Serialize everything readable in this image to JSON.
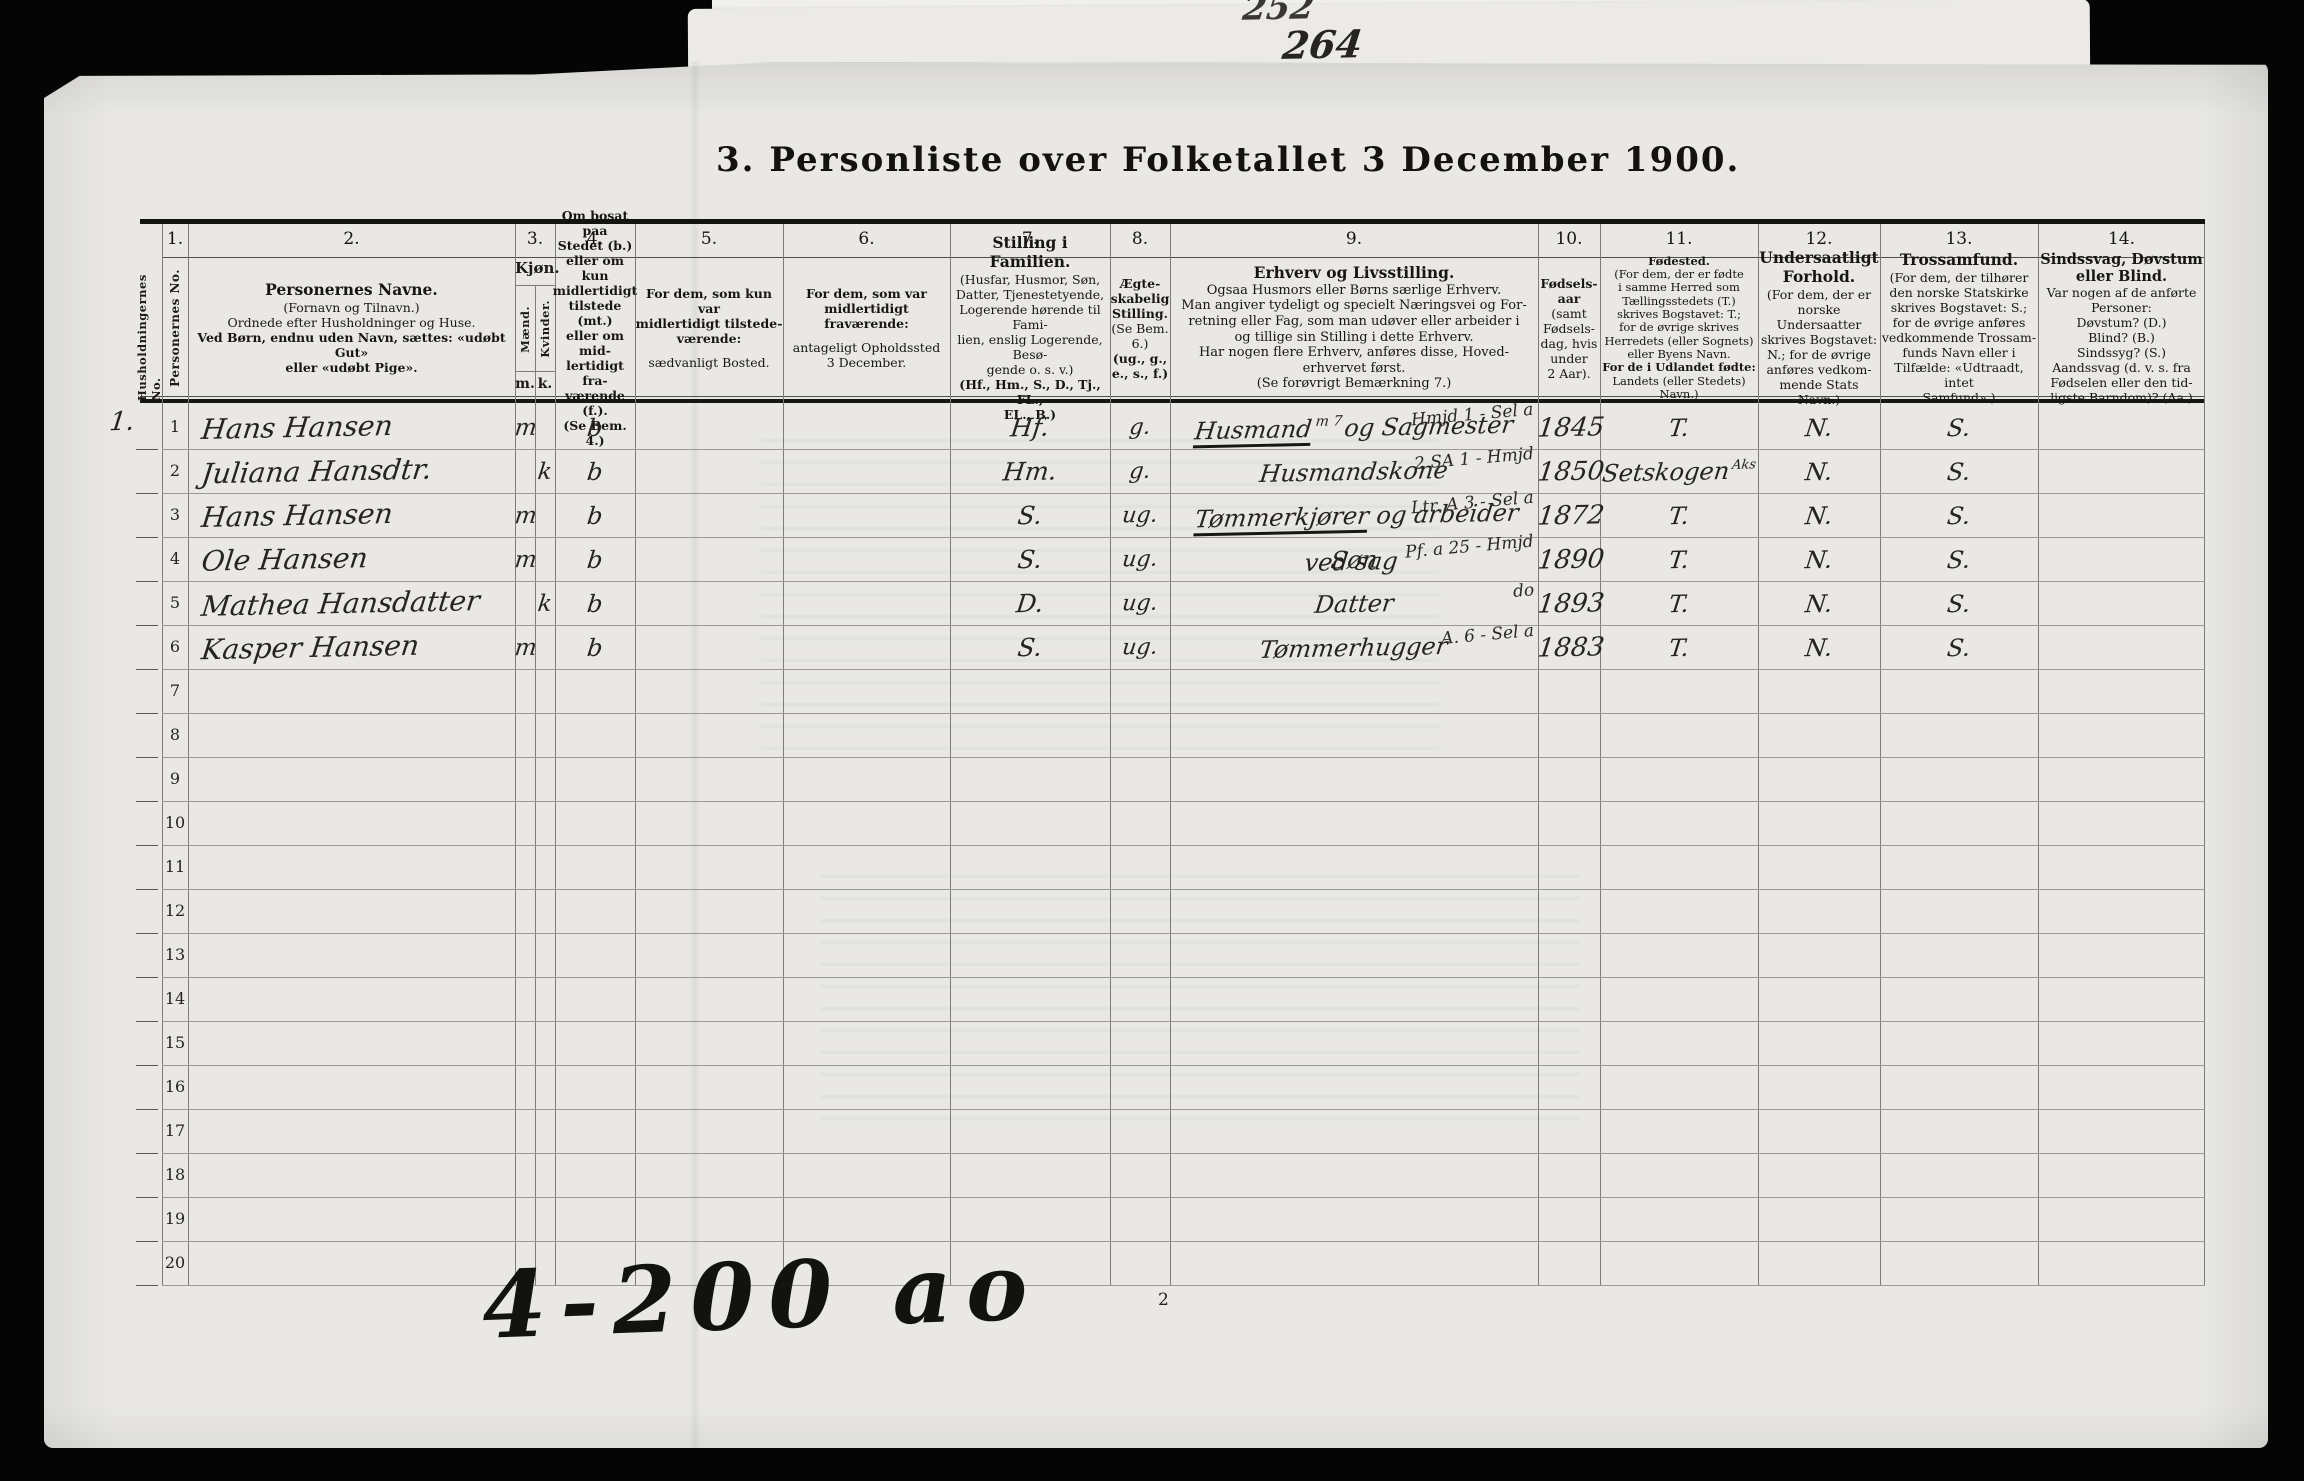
{
  "page": {
    "top_scribble_upper": "252",
    "top_scribble_lower": "264",
    "title": "3. Personliste over Folketallet 3 December 1900.",
    "footer_scribble": "4-200 ao",
    "page_number": "2"
  },
  "table": {
    "margin_label": "Husholdningernes No.",
    "header": {
      "c1": {
        "no": "1.",
        "vlabel": "Personernes No."
      },
      "c2": {
        "no": "2.",
        "segments": [
          [
            "t",
            "Personernes Navne."
          ],
          [
            "s",
            "(Fornavn og Tilnavn.)"
          ],
          [
            "s",
            "Ordnede efter Husholdninger og Huse."
          ],
          [
            "sb",
            "Ved Børn, endnu uden Navn, sættes: «udøbt Gut»"
          ],
          [
            "sb",
            "eller «udøbt Pige»."
          ]
        ]
      },
      "c3": {
        "no": "3.",
        "title": "Kjøn.",
        "sub_left": "Mænd.",
        "sub_right": "Kvinder.",
        "abbr_left": "m.",
        "abbr_right": "k."
      },
      "c4": {
        "no": "4.",
        "segments": [
          [
            "sb",
            "Om bosat paa"
          ],
          [
            "sb",
            "Stedet (b.)"
          ],
          [
            "sb",
            "eller om kun"
          ],
          [
            "sb",
            "midlertidigt"
          ],
          [
            "sb",
            "tilstede (mt.)"
          ],
          [
            "sb",
            "eller om mid-"
          ],
          [
            "sb",
            "lertidigt fra-"
          ],
          [
            "sb",
            "værende (f.)."
          ],
          [
            "sb",
            "(Se Bem. 4.)"
          ]
        ]
      },
      "c5": {
        "no": "5.",
        "segments": [
          [
            "sb",
            "For dem, som kun var"
          ],
          [
            "sb",
            "midlertidigt tilstede-"
          ],
          [
            "sb",
            "værende:"
          ],
          [
            "gap",
            ""
          ],
          [
            "s",
            "sædvanligt Bosted."
          ]
        ]
      },
      "c6": {
        "no": "6.",
        "segments": [
          [
            "sb",
            "For dem, som var"
          ],
          [
            "sb",
            "midlertidigt"
          ],
          [
            "sb",
            "fraværende:"
          ],
          [
            "gap",
            ""
          ],
          [
            "s",
            "antageligt Opholdssted"
          ],
          [
            "s",
            "3 December."
          ]
        ]
      },
      "c7": {
        "no": "7.",
        "segments": [
          [
            "t",
            "Stilling i Familien."
          ],
          [
            "s",
            "(Husfar, Husmor, Søn,"
          ],
          [
            "s",
            "Datter, Tjenestetyende,"
          ],
          [
            "s",
            "Logerende hørende til Fami-"
          ],
          [
            "s",
            "lien, enslig Logerende, Besø-"
          ],
          [
            "s",
            "gende o. s. v.)"
          ],
          [
            "sb",
            "(Hf., Hm., S., D., Tj., FL.,"
          ],
          [
            "sb",
            "EL., B.)"
          ]
        ]
      },
      "c8": {
        "no": "8.",
        "segments": [
          [
            "sb",
            "Ægte-"
          ],
          [
            "sb",
            "skabelig"
          ],
          [
            "sb",
            "Stilling."
          ],
          [
            "s",
            "(Se Bem. 6.)"
          ],
          [
            "sb",
            "(ug., g.,"
          ],
          [
            "sb",
            "e., s., f.)"
          ]
        ]
      },
      "c9": {
        "no": "9.",
        "segments": [
          [
            "t",
            "Erhverv og Livsstilling."
          ],
          [
            "s",
            "Ogsaa Husmors eller Børns særlige Erhverv."
          ],
          [
            "s",
            "Man angiver tydeligt og specielt Næringsvei og For-"
          ],
          [
            "s",
            "retning eller Fag, som man udøver eller arbeider i"
          ],
          [
            "s",
            "og tillige sin Stilling i dette Erhverv."
          ],
          [
            "s",
            "Har nogen flere Erhverv, anføres disse, Hoved-"
          ],
          [
            "s",
            "erhvervet først."
          ],
          [
            "s",
            "(Se forøvrigt Bemærkning 7.)"
          ]
        ]
      },
      "c10": {
        "no": "10.",
        "segments": [
          [
            "sb",
            "Fødsels-"
          ],
          [
            "sb",
            "aar"
          ],
          [
            "s",
            "(samt"
          ],
          [
            "s",
            "Fødsels-"
          ],
          [
            "s",
            "dag, hvis"
          ],
          [
            "s",
            "under"
          ],
          [
            "s",
            "2 Aar)."
          ]
        ]
      },
      "c11": {
        "no": "11.",
        "segments": [
          [
            "t",
            "Fødested."
          ],
          [
            "s",
            "(For dem, der er fødte"
          ],
          [
            "s",
            "i samme Herred som"
          ],
          [
            "s",
            "Tællingsstedets (T.)"
          ],
          [
            "s",
            "skrives Bogstavet: T.;"
          ],
          [
            "s",
            "for de øvrige skrives"
          ],
          [
            "s",
            "Herredets (eller Sognets)"
          ],
          [
            "s",
            "eller Byens Navn."
          ],
          [
            "sb",
            "For de i Udlandet fødte:"
          ],
          [
            "s",
            "Landets (eller Stedets)"
          ],
          [
            "s",
            "Navn.)"
          ]
        ]
      },
      "c12": {
        "no": "12.",
        "segments": [
          [
            "t",
            "Undersaatligt"
          ],
          [
            "t",
            "Forhold."
          ],
          [
            "gap",
            ""
          ],
          [
            "s",
            "(For dem, der er"
          ],
          [
            "s",
            "norske Undersaatter"
          ],
          [
            "s",
            "skrives Bogstavet:"
          ],
          [
            "s",
            "N.; for de øvrige"
          ],
          [
            "s",
            "anføres vedkom-"
          ],
          [
            "s",
            "mende Stats Navn.)"
          ]
        ]
      },
      "c13": {
        "no": "13.",
        "segments": [
          [
            "t",
            "Trossamfund."
          ],
          [
            "s",
            "(For dem, der tilhører"
          ],
          [
            "s",
            "den norske Statskirke"
          ],
          [
            "s",
            "skrives Bogstavet: S.;"
          ],
          [
            "s",
            "for de øvrige anføres"
          ],
          [
            "s",
            "vedkommende Trossam-"
          ],
          [
            "s",
            "funds Navn eller i"
          ],
          [
            "s",
            "Tilfælde: «Udtraadt, intet"
          ],
          [
            "s",
            "Samfund».)"
          ]
        ]
      },
      "c14": {
        "no": "14.",
        "segments": [
          [
            "t",
            "Sindssvag, Døvstum"
          ],
          [
            "t",
            "eller Blind."
          ],
          [
            "s",
            "Var nogen af de anførte"
          ],
          [
            "s",
            "Personer:"
          ],
          [
            "s",
            "Døvstum?  (D.)"
          ],
          [
            "s",
            "Blind?  (B.)"
          ],
          [
            "s",
            "Sindssyg?  (S.)"
          ],
          [
            "s",
            "Aandssvag (d. v. s. fra"
          ],
          [
            "s",
            "Fødselen eller den tid-"
          ],
          [
            "s",
            "ligste Barndom)? (Aa.)"
          ]
        ]
      }
    },
    "rows": [
      {
        "household": "1.",
        "no": "1",
        "name": "Hans Hansen",
        "sex_m": "m",
        "residency": "b",
        "family": "Hf.",
        "marital": "g.",
        "occupation": {
          "underlined": "Husmand",
          "rest": "og Sagmester",
          "mark": "m 7",
          "note": "Hmjd 1 - Sel a"
        },
        "birth_year": "1845",
        "birthplace": "T.",
        "citizenship": "N.",
        "religion": "S."
      },
      {
        "no": "2",
        "name": "Juliana Hansdtr.",
        "sex_k": "k",
        "residency": "b",
        "family": "Hm.",
        "marital": "g.",
        "occupation": {
          "main": "Husmandskone",
          "note": "2 SA 1 - Hmjd"
        },
        "birth_year": "1850",
        "birthplace": "Setskogen",
        "birthplace_sup": "Aks",
        "citizenship": "N.",
        "religion": "S."
      },
      {
        "no": "3",
        "name": "Hans Hansen",
        "sex_m": "m",
        "residency": "b",
        "family": "S.",
        "marital": "ug.",
        "occupation": {
          "underlined": "Tømmerkjører",
          "rest": "og arbeider ved sag",
          "note": "Ltr. A 3 - Sel a"
        },
        "birth_year": "1872",
        "birthplace": "T.",
        "citizenship": "N.",
        "religion": "S."
      },
      {
        "no": "4",
        "name": "Ole Hansen",
        "sex_m": "m",
        "residency": "b",
        "family": "S.",
        "marital": "ug.",
        "occupation": {
          "main": "Søn",
          "note": "Pf. a 25 - Hmjd"
        },
        "birth_year": "1890",
        "birthplace": "T.",
        "citizenship": "N.",
        "religion": "S."
      },
      {
        "no": "5",
        "name": "Mathea Hansdatter",
        "sex_k": "k",
        "residency": "b",
        "family": "D.",
        "marital": "ug.",
        "occupation": {
          "main": "Datter",
          "note": "do"
        },
        "birth_year": "1893",
        "birthplace": "T.",
        "citizenship": "N.",
        "religion": "S."
      },
      {
        "no": "6",
        "name": "Kasper Hansen",
        "sex_m": "m",
        "residency": "b",
        "family": "S.",
        "marital": "ug.",
        "occupation": {
          "main": "Tømmerhugger",
          "note": "A. 6 - Sel a"
        },
        "birth_year": "1883",
        "birthplace": "T.",
        "citizenship": "N.",
        "religion": "S."
      },
      {
        "no": "7"
      },
      {
        "no": "8"
      },
      {
        "no": "9"
      },
      {
        "no": "10"
      },
      {
        "no": "11"
      },
      {
        "no": "12"
      },
      {
        "no": "13"
      },
      {
        "no": "14"
      },
      {
        "no": "15"
      },
      {
        "no": "16"
      },
      {
        "no": "17"
      },
      {
        "no": "18"
      },
      {
        "no": "19"
      },
      {
        "no": "20"
      }
    ]
  }
}
